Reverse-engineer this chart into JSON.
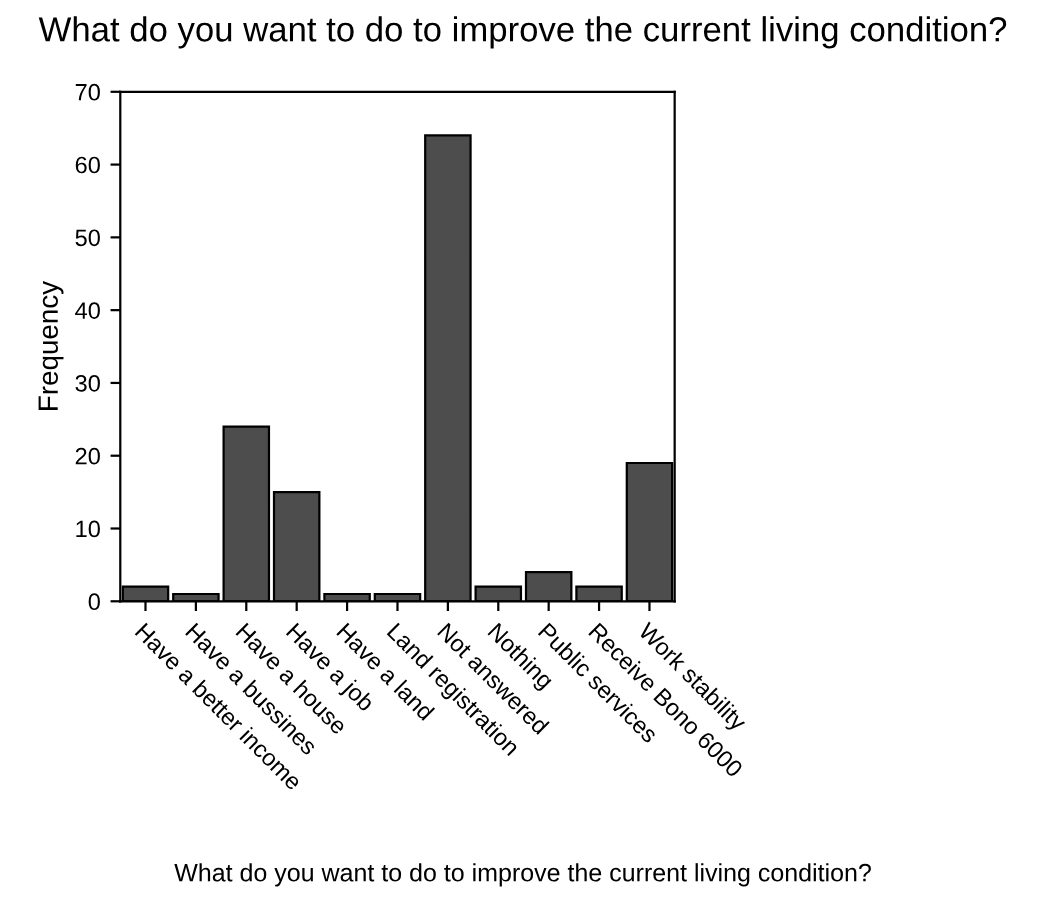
{
  "chart_data": {
    "type": "bar",
    "title": "What do you want to do to improve the current living condition?",
    "xlabel": "What do you want to do to improve the current living condition?",
    "ylabel": "Frequency",
    "categories": [
      "Have a better income",
      "Have a bussines",
      "Have a house",
      "Have a job",
      "Have a land",
      "Land registration",
      "Not answered",
      "Nothing",
      "Public services",
      "Receive Bono 6000",
      "Work stability"
    ],
    "values": [
      2,
      1,
      24,
      15,
      1,
      1,
      64,
      2,
      4,
      2,
      19
    ],
    "color": "#4d4d4d",
    "ylim": [
      0,
      70
    ],
    "yticks": [
      0,
      10,
      20,
      30,
      40,
      50,
      60,
      70
    ],
    "grid": false,
    "legend": false
  }
}
